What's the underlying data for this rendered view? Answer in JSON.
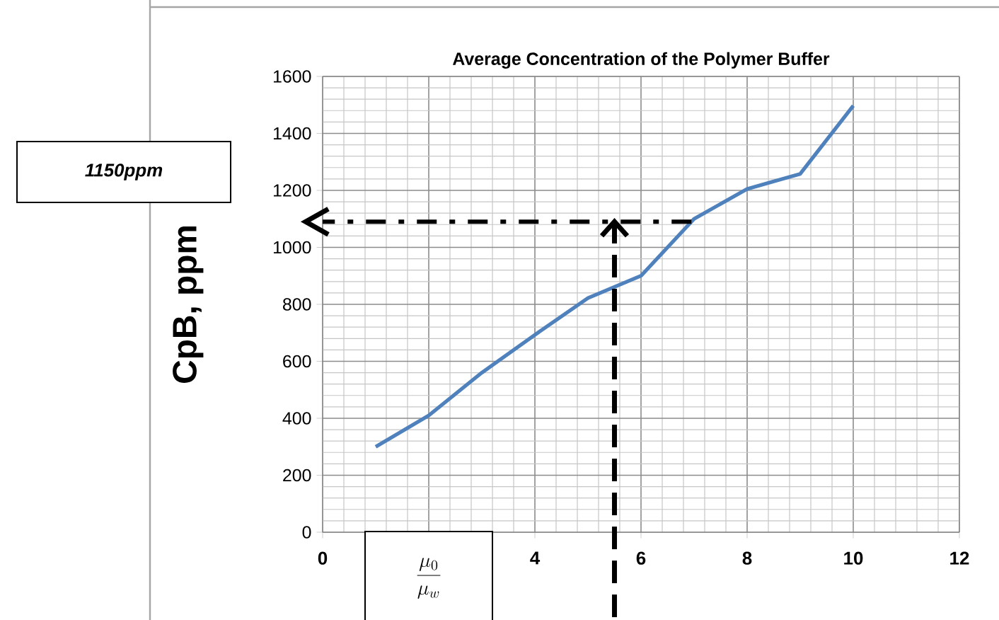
{
  "chart_data": {
    "type": "line",
    "title": "Average Concentration of the Polymer Buffer",
    "xlabel": "\\frac{\\mu_0}{\\mu_w}",
    "ylabel": "CpB, ppm",
    "x": [
      1,
      2,
      3,
      4,
      5,
      6,
      7,
      8,
      9,
      10
    ],
    "series": [
      {
        "color": "#4f81bd",
        "values": [
          300,
          410,
          560,
          693,
          822,
          900,
          1100,
          1205,
          1258,
          1497
        ]
      }
    ],
    "xlim": [
      0,
      12
    ],
    "xticks": [
      0,
      {
        "value": 2,
        "label": null
      },
      4,
      6,
      8,
      10,
      12
    ],
    "ylim": [
      0,
      1600
    ],
    "yticks": [
      0,
      200,
      400,
      600,
      800,
      1000,
      1200,
      1400,
      1600
    ],
    "grid": true,
    "marker": "none",
    "line_style": "solid",
    "ref_lines": [
      {
        "axis": "y",
        "value": 1090,
        "color": "#000000",
        "line_style": "dashdotted"
      },
      {
        "axis": "x",
        "value": 5.5,
        "color": "#000000",
        "line_style": "dashed"
      }
    ],
    "annotations": [
      "1150ppm"
    ]
  }
}
